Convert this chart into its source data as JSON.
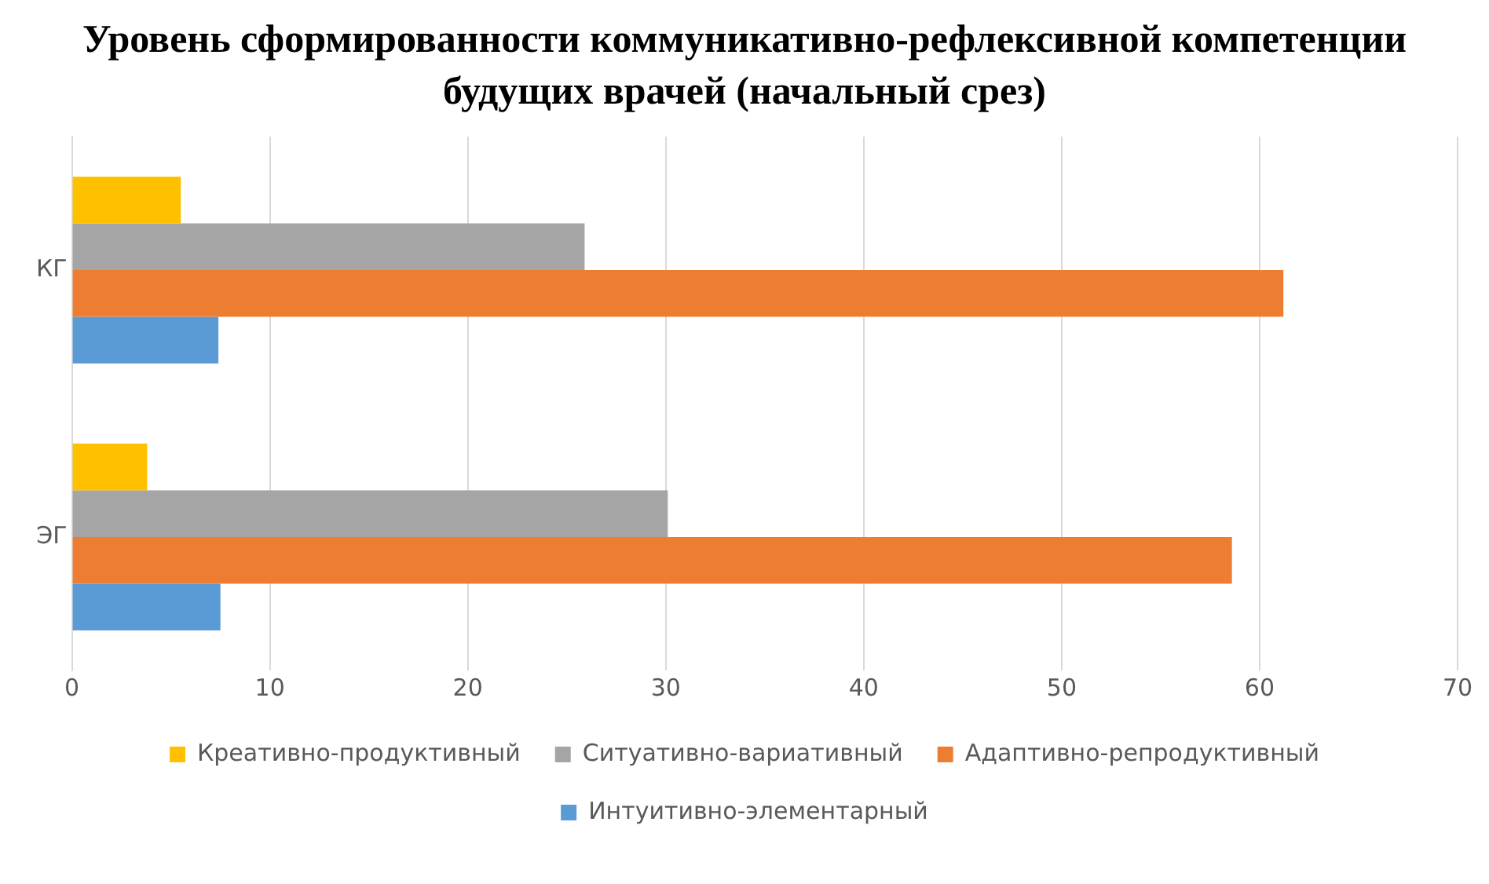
{
  "chart_data": {
    "type": "bar",
    "orientation": "horizontal",
    "title": "Уровень сформированности коммуникативно-рефлексивной компетенции будущих врачей (начальный срез)",
    "categories": [
      "КГ",
      "ЭГ"
    ],
    "series": [
      {
        "name": "Креативно-продуктивный",
        "color": "#ffc000",
        "values": [
          5.5,
          3.8
        ]
      },
      {
        "name": "Ситуативно-вариативный",
        "color": "#a5a5a5",
        "values": [
          25.9,
          30.1
        ]
      },
      {
        "name": "Адаптивно-репродуктивный",
        "color": "#ed7d31",
        "values": [
          61.2,
          58.6
        ]
      },
      {
        "name": "Интуитивно-элементарный",
        "color": "#5b9bd5",
        "values": [
          7.4,
          7.5
        ]
      }
    ],
    "xlim": [
      0,
      70
    ],
    "xticks": [
      0,
      10,
      20,
      30,
      40,
      50,
      60,
      70
    ],
    "grid": "x",
    "legend": "bottom"
  }
}
